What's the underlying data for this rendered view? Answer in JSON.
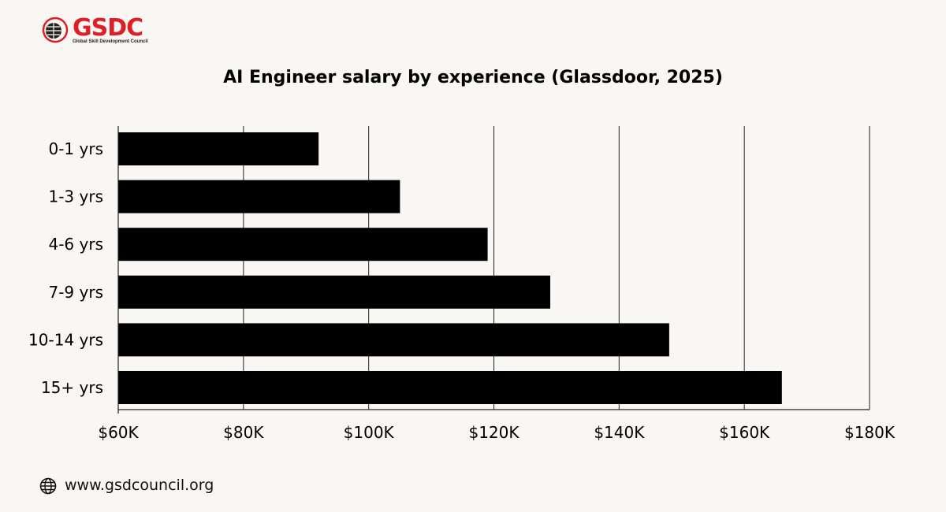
{
  "logo": {
    "text": "GSDC",
    "subtitle": "Global Skill Development Council",
    "color": "#e01e25"
  },
  "footer": {
    "url": "www.gsdcouncil.org",
    "icon": "globe-icon"
  },
  "chart_data": {
    "type": "bar",
    "orientation": "horizontal",
    "title": "AI Engineer salary by experience (Glassdoor, 2025)",
    "categories": [
      "0-1 yrs",
      "1-3 yrs",
      "4-6 yrs",
      "7-9 yrs",
      "10-14 yrs",
      "15+ yrs"
    ],
    "values": [
      92000,
      105000,
      119000,
      129000,
      148000,
      166000
    ],
    "xlim": [
      60000,
      180000
    ],
    "xticks": [
      60000,
      80000,
      100000,
      120000,
      140000,
      160000,
      180000
    ],
    "xtick_labels": [
      "$60K",
      "$80K",
      "$100K",
      "$120K",
      "$140K",
      "$160K",
      "$180K"
    ],
    "xlabel": "",
    "ylabel": "",
    "grid": "vertical",
    "bar_color": "#000000",
    "legend": "none"
  }
}
